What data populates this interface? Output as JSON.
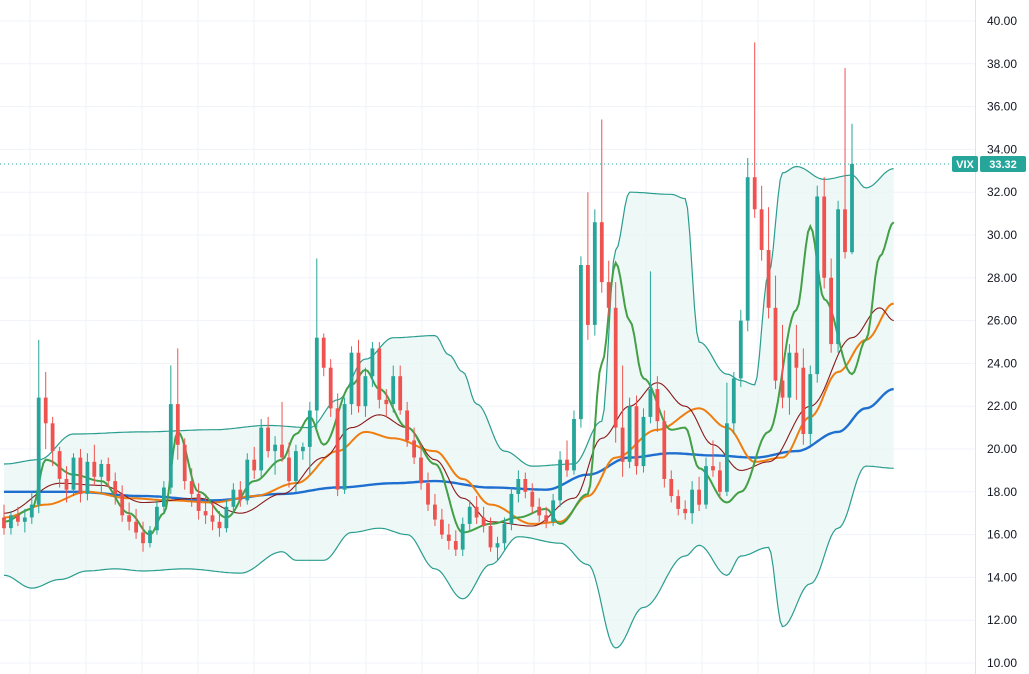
{
  "chart_data": {
    "type": "candlestick",
    "symbol_badge": "VIX",
    "last_price_label": "33.32",
    "last_price": 33.32,
    "ylim": [
      10,
      40
    ],
    "y_ticks": [
      "10.00",
      "12.00",
      "14.00",
      "16.00",
      "18.00",
      "20.00",
      "22.00",
      "24.00",
      "26.00",
      "28.00",
      "30.00",
      "32.00",
      "34.00",
      "36.00",
      "38.00",
      "40.00"
    ],
    "grid": true,
    "colors": {
      "up": "#26a69a",
      "down": "#ef5350",
      "bollinger": "#2a9d8f",
      "bollinger_fill": "#e8f5f3",
      "ma_fast": "#43a047",
      "ma_dark": "#8b1a1a",
      "ma_mid": "#ef7d0f",
      "ma_slow": "#1e6fd0",
      "grid": "#f0f3fa",
      "price_line": "#26a69a"
    },
    "candles_ohlc": [
      [
        16.8,
        17.4,
        16.0,
        16.3
      ],
      [
        16.3,
        17.1,
        16.0,
        16.9
      ],
      [
        16.9,
        17.3,
        16.4,
        16.6
      ],
      [
        16.6,
        17.2,
        16.1,
        16.8
      ],
      [
        16.8,
        18.0,
        16.5,
        17.4
      ],
      [
        17.4,
        25.1,
        17.0,
        22.4
      ],
      [
        22.4,
        23.6,
        20.0,
        21.2
      ],
      [
        21.2,
        21.5,
        19.2,
        19.9
      ],
      [
        19.9,
        20.1,
        18.2,
        18.6
      ],
      [
        18.6,
        19.2,
        17.5,
        18.1
      ],
      [
        18.1,
        19.8,
        17.8,
        19.6
      ],
      [
        19.6,
        20.0,
        17.5,
        17.9
      ],
      [
        17.9,
        19.8,
        17.6,
        19.4
      ],
      [
        19.4,
        20.2,
        18.3,
        18.7
      ],
      [
        18.7,
        19.5,
        17.9,
        19.3
      ],
      [
        19.3,
        19.6,
        18.2,
        18.5
      ],
      [
        18.5,
        18.9,
        17.4,
        17.9
      ],
      [
        17.9,
        18.3,
        16.6,
        16.9
      ],
      [
        16.9,
        17.5,
        16.2,
        16.6
      ],
      [
        16.6,
        17.2,
        15.8,
        16.1
      ],
      [
        16.1,
        16.6,
        15.2,
        15.6
      ],
      [
        15.6,
        16.4,
        15.4,
        16.2
      ],
      [
        16.2,
        17.6,
        16.0,
        17.3
      ],
      [
        17.3,
        18.5,
        17.0,
        18.2
      ],
      [
        18.2,
        23.9,
        17.9,
        22.1
      ],
      [
        22.1,
        24.7,
        19.5,
        20.2
      ],
      [
        20.2,
        20.5,
        18.1,
        18.5
      ],
      [
        18.5,
        19.1,
        17.3,
        17.9
      ],
      [
        17.9,
        18.4,
        16.7,
        17.1
      ],
      [
        17.1,
        17.9,
        16.5,
        16.9
      ],
      [
        16.9,
        17.5,
        16.2,
        16.6
      ],
      [
        16.6,
        17.1,
        15.9,
        16.3
      ],
      [
        16.3,
        17.6,
        16.1,
        17.3
      ],
      [
        17.3,
        18.4,
        17.0,
        18.1
      ],
      [
        18.1,
        18.5,
        17.3,
        17.6
      ],
      [
        17.6,
        19.8,
        17.4,
        19.5
      ],
      [
        19.5,
        20.1,
        18.6,
        19.0
      ],
      [
        19.0,
        21.4,
        18.7,
        21.0
      ],
      [
        21.0,
        21.5,
        19.6,
        19.9
      ],
      [
        19.9,
        20.6,
        18.8,
        20.2
      ],
      [
        20.2,
        22.2,
        19.4,
        19.6
      ],
      [
        19.6,
        20.3,
        18.2,
        18.5
      ],
      [
        18.5,
        20.2,
        18.0,
        19.9
      ],
      [
        19.9,
        20.3,
        19.5,
        20.1
      ],
      [
        20.1,
        22.2,
        18.8,
        21.8
      ],
      [
        21.8,
        28.9,
        21.0,
        25.2
      ],
      [
        25.2,
        25.4,
        23.4,
        23.8
      ],
      [
        23.8,
        24.2,
        21.5,
        21.9
      ],
      [
        21.9,
        22.6,
        17.8,
        18.1
      ],
      [
        18.1,
        22.4,
        17.9,
        22.1
      ],
      [
        22.1,
        24.8,
        21.6,
        24.5
      ],
      [
        24.5,
        25.1,
        21.7,
        22.0
      ],
      [
        22.0,
        23.8,
        21.5,
        23.4
      ],
      [
        23.4,
        25.0,
        22.9,
        24.7
      ],
      [
        24.7,
        25.0,
        21.9,
        22.3
      ],
      [
        22.3,
        22.8,
        21.5,
        22.1
      ],
      [
        22.1,
        23.9,
        21.7,
        23.4
      ],
      [
        23.4,
        23.9,
        21.6,
        21.8
      ],
      [
        21.8,
        22.2,
        20.1,
        20.4
      ],
      [
        20.4,
        21.0,
        19.3,
        19.6
      ],
      [
        19.6,
        20.3,
        18.1,
        18.4
      ],
      [
        18.4,
        18.9,
        17.1,
        17.4
      ],
      [
        17.4,
        17.9,
        16.4,
        16.7
      ],
      [
        16.7,
        17.2,
        15.8,
        16.0
      ],
      [
        16.0,
        16.5,
        15.3,
        15.7
      ],
      [
        15.7,
        16.2,
        15.0,
        15.3
      ],
      [
        15.3,
        16.8,
        15.0,
        16.5
      ],
      [
        16.5,
        17.6,
        16.2,
        17.3
      ],
      [
        17.3,
        17.8,
        16.5,
        16.8
      ],
      [
        16.8,
        17.3,
        16.1,
        16.4
      ],
      [
        16.4,
        16.8,
        15.2,
        15.4
      ],
      [
        15.4,
        15.9,
        14.8,
        15.6
      ],
      [
        15.6,
        16.8,
        15.3,
        16.5
      ],
      [
        16.5,
        18.2,
        16.2,
        17.9
      ],
      [
        17.9,
        19.0,
        17.5,
        18.6
      ],
      [
        18.6,
        18.9,
        17.7,
        18.0
      ],
      [
        18.0,
        18.4,
        17.0,
        17.3
      ],
      [
        17.3,
        17.7,
        16.6,
        16.9
      ],
      [
        16.9,
        17.3,
        16.3,
        16.6
      ],
      [
        16.6,
        17.9,
        16.4,
        17.6
      ],
      [
        17.6,
        19.9,
        17.3,
        19.5
      ],
      [
        19.5,
        20.4,
        18.7,
        19.0
      ],
      [
        19.0,
        21.8,
        18.8,
        21.4
      ],
      [
        21.4,
        29.0,
        21.0,
        28.6
      ],
      [
        28.6,
        32.0,
        25.1,
        25.8
      ],
      [
        25.8,
        31.2,
        25.3,
        30.6
      ],
      [
        30.6,
        35.4,
        27.3,
        27.8
      ],
      [
        27.8,
        28.8,
        26.2,
        26.6
      ],
      [
        26.6,
        27.8,
        20.3,
        21.0
      ],
      [
        21.0,
        23.9,
        18.7,
        19.4
      ],
      [
        19.4,
        22.4,
        19.1,
        22.0
      ],
      [
        22.0,
        22.5,
        18.8,
        19.2
      ],
      [
        19.2,
        21.9,
        18.9,
        21.5
      ],
      [
        21.5,
        28.3,
        21.2,
        22.8
      ],
      [
        22.8,
        23.4,
        20.8,
        21.3
      ],
      [
        21.3,
        21.8,
        18.2,
        18.6
      ],
      [
        18.6,
        19.0,
        17.5,
        17.8
      ],
      [
        17.8,
        18.1,
        16.9,
        17.2
      ],
      [
        17.2,
        17.6,
        16.7,
        17.0
      ],
      [
        17.0,
        18.5,
        16.5,
        18.1
      ],
      [
        18.1,
        18.7,
        17.1,
        17.4
      ],
      [
        17.4,
        19.6,
        17.2,
        19.2
      ],
      [
        19.2,
        20.4,
        18.7,
        19.0
      ],
      [
        19.0,
        19.4,
        17.7,
        18.0
      ],
      [
        18.0,
        23.1,
        17.8,
        21.2
      ],
      [
        21.2,
        23.6,
        20.7,
        23.3
      ],
      [
        23.3,
        26.5,
        22.9,
        26.0
      ],
      [
        26.0,
        33.6,
        25.5,
        32.7
      ],
      [
        32.7,
        39.0,
        30.8,
        31.2
      ],
      [
        31.2,
        32.3,
        28.8,
        29.3
      ],
      [
        29.3,
        31.3,
        26.1,
        26.6
      ],
      [
        26.6,
        28.1,
        22.8,
        23.2
      ],
      [
        23.2,
        25.8,
        21.9,
        22.4
      ],
      [
        22.4,
        24.9,
        21.6,
        24.5
      ],
      [
        24.5,
        25.8,
        22.3,
        23.8
      ],
      [
        23.8,
        24.7,
        20.2,
        20.7
      ],
      [
        20.7,
        23.9,
        20.2,
        23.5
      ],
      [
        23.5,
        32.3,
        23.1,
        31.8
      ],
      [
        31.8,
        32.7,
        27.5,
        28.0
      ],
      [
        28.0,
        28.9,
        24.5,
        24.9
      ],
      [
        24.9,
        31.6,
        24.5,
        31.2
      ],
      [
        31.2,
        37.8,
        28.9,
        29.2
      ],
      [
        29.2,
        35.2,
        29.1,
        33.32
      ]
    ],
    "bollinger_upper": [
      [
        0,
        19.3
      ],
      [
        5,
        19.5
      ],
      [
        10,
        20.7
      ],
      [
        20,
        20.8
      ],
      [
        30,
        20.9
      ],
      [
        38,
        21.1
      ],
      [
        44,
        21.0
      ],
      [
        48,
        22.3
      ],
      [
        52,
        24.2
      ],
      [
        56,
        25.2
      ],
      [
        62,
        25.3
      ],
      [
        64,
        24.4
      ],
      [
        66,
        23.6
      ],
      [
        68,
        22.1
      ],
      [
        72,
        19.9
      ],
      [
        76,
        19.2
      ],
      [
        82,
        19.3
      ],
      [
        86,
        21.3
      ],
      [
        88,
        29.3
      ],
      [
        90,
        32.0
      ],
      [
        96,
        31.9
      ],
      [
        98,
        31.7
      ],
      [
        100,
        25.0
      ],
      [
        104,
        23.5
      ],
      [
        106,
        23.2
      ],
      [
        108,
        23.0
      ],
      [
        110,
        28.2
      ],
      [
        112,
        32.9
      ],
      [
        114,
        33.2
      ],
      [
        118,
        32.6
      ],
      [
        122,
        32.8
      ],
      [
        124,
        32.2
      ],
      [
        128,
        33.1
      ]
    ],
    "bollinger_lower": [
      [
        0,
        14.1
      ],
      [
        4,
        13.5
      ],
      [
        8,
        13.9
      ],
      [
        12,
        14.3
      ],
      [
        16,
        14.4
      ],
      [
        20,
        14.3
      ],
      [
        26,
        14.4
      ],
      [
        34,
        14.2
      ],
      [
        40,
        15.2
      ],
      [
        42,
        14.8
      ],
      [
        46,
        14.8
      ],
      [
        50,
        16.1
      ],
      [
        54,
        16.3
      ],
      [
        58,
        16.0
      ],
      [
        62,
        14.4
      ],
      [
        66,
        13.0
      ],
      [
        70,
        14.6
      ],
      [
        74,
        15.9
      ],
      [
        80,
        15.6
      ],
      [
        84,
        14.6
      ],
      [
        88,
        10.7
      ],
      [
        92,
        12.6
      ],
      [
        98,
        15.0
      ],
      [
        100,
        15.5
      ],
      [
        104,
        14.1
      ],
      [
        106,
        15.0
      ],
      [
        110,
        15.4
      ],
      [
        112,
        11.7
      ],
      [
        116,
        13.7
      ],
      [
        120,
        16.3
      ],
      [
        124,
        19.2
      ],
      [
        128,
        19.1
      ]
    ],
    "ma_fast": [
      [
        0,
        16.6
      ],
      [
        4,
        17.2
      ],
      [
        6,
        19.5
      ],
      [
        10,
        18.8
      ],
      [
        14,
        18.5
      ],
      [
        18,
        17.0
      ],
      [
        21,
        16.0
      ],
      [
        23,
        17.0
      ],
      [
        25,
        20.8
      ],
      [
        28,
        18.0
      ],
      [
        32,
        16.8
      ],
      [
        36,
        18.5
      ],
      [
        40,
        19.5
      ],
      [
        42,
        20.7
      ],
      [
        44,
        21.5
      ],
      [
        46,
        20.2
      ],
      [
        50,
        23.0
      ],
      [
        52,
        23.7
      ],
      [
        54,
        22.8
      ],
      [
        58,
        21.0
      ],
      [
        62,
        19.3
      ],
      [
        66,
        16.1
      ],
      [
        70,
        16.5
      ],
      [
        74,
        16.8
      ],
      [
        78,
        17.2
      ],
      [
        80,
        16.5
      ],
      [
        84,
        17.9
      ],
      [
        86,
        24.0
      ],
      [
        88,
        28.7
      ],
      [
        90,
        26.0
      ],
      [
        92,
        23.3
      ],
      [
        96,
        20.9
      ],
      [
        98,
        21.0
      ],
      [
        100,
        19.1
      ],
      [
        104,
        17.5
      ],
      [
        106,
        18.0
      ],
      [
        110,
        20.8
      ],
      [
        114,
        26.5
      ],
      [
        116,
        30.4
      ],
      [
        118,
        27.0
      ],
      [
        122,
        23.5
      ],
      [
        124,
        25.1
      ],
      [
        126,
        29.0
      ],
      [
        128,
        30.6
      ]
    ],
    "ma_dark": [
      [
        0,
        17.0
      ],
      [
        8,
        18.4
      ],
      [
        14,
        18.3
      ],
      [
        20,
        17.5
      ],
      [
        28,
        17.7
      ],
      [
        34,
        17.0
      ],
      [
        40,
        17.9
      ],
      [
        46,
        19.6
      ],
      [
        50,
        21.0
      ],
      [
        54,
        21.6
      ],
      [
        58,
        21.0
      ],
      [
        62,
        19.5
      ],
      [
        66,
        17.7
      ],
      [
        70,
        16.6
      ],
      [
        76,
        16.4
      ],
      [
        82,
        17.7
      ],
      [
        86,
        20.5
      ],
      [
        90,
        22.0
      ],
      [
        94,
        23.1
      ],
      [
        98,
        22.0
      ],
      [
        102,
        20.2
      ],
      [
        106,
        19.0
      ],
      [
        110,
        19.4
      ],
      [
        116,
        22.0
      ],
      [
        122,
        25.2
      ],
      [
        126,
        26.6
      ],
      [
        128,
        26.0
      ]
    ],
    "ma_mid": [
      [
        0,
        16.8
      ],
      [
        6,
        17.4
      ],
      [
        12,
        18.0
      ],
      [
        18,
        17.7
      ],
      [
        24,
        17.6
      ],
      [
        30,
        17.5
      ],
      [
        36,
        17.8
      ],
      [
        42,
        18.4
      ],
      [
        48,
        19.9
      ],
      [
        52,
        20.8
      ],
      [
        56,
        20.5
      ],
      [
        62,
        19.9
      ],
      [
        66,
        18.6
      ],
      [
        70,
        17.4
      ],
      [
        76,
        16.5
      ],
      [
        80,
        16.6
      ],
      [
        84,
        17.8
      ],
      [
        88,
        19.6
      ],
      [
        94,
        20.9
      ],
      [
        100,
        21.9
      ],
      [
        104,
        21.0
      ],
      [
        108,
        19.4
      ],
      [
        112,
        19.6
      ],
      [
        116,
        21.5
      ],
      [
        120,
        23.6
      ],
      [
        124,
        25.1
      ],
      [
        128,
        26.8
      ]
    ],
    "ma_slow": [
      [
        0,
        18.0
      ],
      [
        10,
        18.0
      ],
      [
        20,
        17.8
      ],
      [
        30,
        17.6
      ],
      [
        40,
        17.9
      ],
      [
        48,
        18.2
      ],
      [
        56,
        18.4
      ],
      [
        62,
        18.5
      ],
      [
        70,
        18.2
      ],
      [
        78,
        18.1
      ],
      [
        84,
        18.8
      ],
      [
        90,
        19.6
      ],
      [
        96,
        19.8
      ],
      [
        102,
        19.7
      ],
      [
        108,
        19.6
      ],
      [
        114,
        19.9
      ],
      [
        120,
        20.8
      ],
      [
        124,
        21.9
      ],
      [
        128,
        22.8
      ]
    ]
  }
}
